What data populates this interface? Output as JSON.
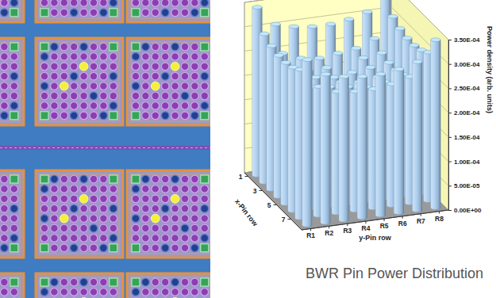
{
  "chart_data": {
    "type": "bar3d",
    "title": "BWR Pin Power Distribution",
    "xlabel": "x-Pin row",
    "category_label": "y-Pin row",
    "ylabel": "Power density (arb. units)",
    "x": [
      1,
      2,
      3,
      4,
      5,
      6,
      7,
      8
    ],
    "xlim": [
      0.5,
      8.5
    ],
    "xticks": [
      1,
      3,
      5,
      7
    ],
    "categories": [
      "R1",
      "R2",
      "R3",
      "R4",
      "R5",
      "R6",
      "R7",
      "R8"
    ],
    "ylim": [
      0,
      0.00035
    ],
    "yticks": [
      {
        "value": 0,
        "label": "0.00E+00"
      },
      {
        "value": 5e-05,
        "label": "5.00E-05"
      },
      {
        "value": 0.0001,
        "label": "1.00E-04"
      },
      {
        "value": 0.00015,
        "label": "1.50E-04"
      },
      {
        "value": 0.0002,
        "label": "2.00E-04"
      },
      {
        "value": 0.00025,
        "label": "2.50E-04"
      },
      {
        "value": 0.0003,
        "label": "3.00E-04"
      },
      {
        "value": 0.00035,
        "label": "3.50E-04"
      }
    ],
    "values": [
      [
        0.000345,
        0.000305,
        0.000295,
        0.00029,
        0.00029,
        0.000295,
        0.000305,
        0.00034
      ],
      [
        0.000305,
        0.00026,
        0.000245,
        0.00024,
        0.000245,
        0.00025,
        0.000265,
        0.000305
      ],
      [
        0.000295,
        0.000245,
        0.000235,
        0.000235,
        5e-06,
        0.000245,
        0.00025,
        0.000295
      ],
      [
        0.00029,
        0.00024,
        0.000235,
        0.00023,
        0.000235,
        0.00024,
        0.000245,
        0.00029
      ],
      [
        0.00029,
        0.000245,
        5e-06,
        0.000235,
        0.00023,
        0.000235,
        0.000245,
        0.00029
      ],
      [
        0.000295,
        0.00025,
        0.000245,
        0.00024,
        0.000235,
        0.00024,
        0.00025,
        0.000295
      ],
      [
        0.000305,
        0.000265,
        0.00025,
        0.000245,
        0.000245,
        0.00025,
        0.00026,
        0.000305
      ],
      [
        0.00034,
        0.000305,
        0.000295,
        0.00029,
        0.00029,
        0.000295,
        0.000305,
        0.000345
      ]
    ],
    "colors": [
      [
        "#a9cdf0",
        "#a9cdf0",
        "#a9cdf0",
        "#a9cdf0",
        "#a9cdf0",
        "#a9cdf0",
        "#a9cdf0",
        "#a9cdf0"
      ],
      [
        "#a9cdf0",
        "#a9cdf0",
        "#a9cdf0",
        "#a9cdf0",
        "#a9cdf0",
        "#a9cdf0",
        "#a9cdf0",
        "#a9cdf0"
      ],
      [
        "#a9cdf0",
        "#a9cdf0",
        "#a9cdf0",
        "#a9cdf0",
        "#f2e33c",
        "#a9cdf0",
        "#a9cdf0",
        "#a9cdf0"
      ],
      [
        "#a9cdf0",
        "#a9cdf0",
        "#a9cdf0",
        "#a9cdf0",
        "#a9cdf0",
        "#a9cdf0",
        "#a9cdf0",
        "#a9cdf0"
      ],
      [
        "#a9cdf0",
        "#a9cdf0",
        "#f2e33c",
        "#a9cdf0",
        "#a9cdf0",
        "#a9cdf0",
        "#a9cdf0",
        "#a9cdf0"
      ],
      [
        "#a9cdf0",
        "#a9cdf0",
        "#a9cdf0",
        "#a9cdf0",
        "#a9cdf0",
        "#a9cdf0",
        "#a9cdf0",
        "#a9cdf0"
      ],
      [
        "#a9cdf0",
        "#a9cdf0",
        "#a9cdf0",
        "#a9cdf0",
        "#a9cdf0",
        "#a9cdf0",
        "#a9cdf0",
        "#a9cdf0"
      ],
      [
        "#a9cdf0",
        "#a9cdf0",
        "#a9cdf0",
        "#a9cdf0",
        "#a9cdf0",
        "#a9cdf0",
        "#a9cdf0",
        "#a9cdf0"
      ]
    ],
    "grid": true
  }
}
